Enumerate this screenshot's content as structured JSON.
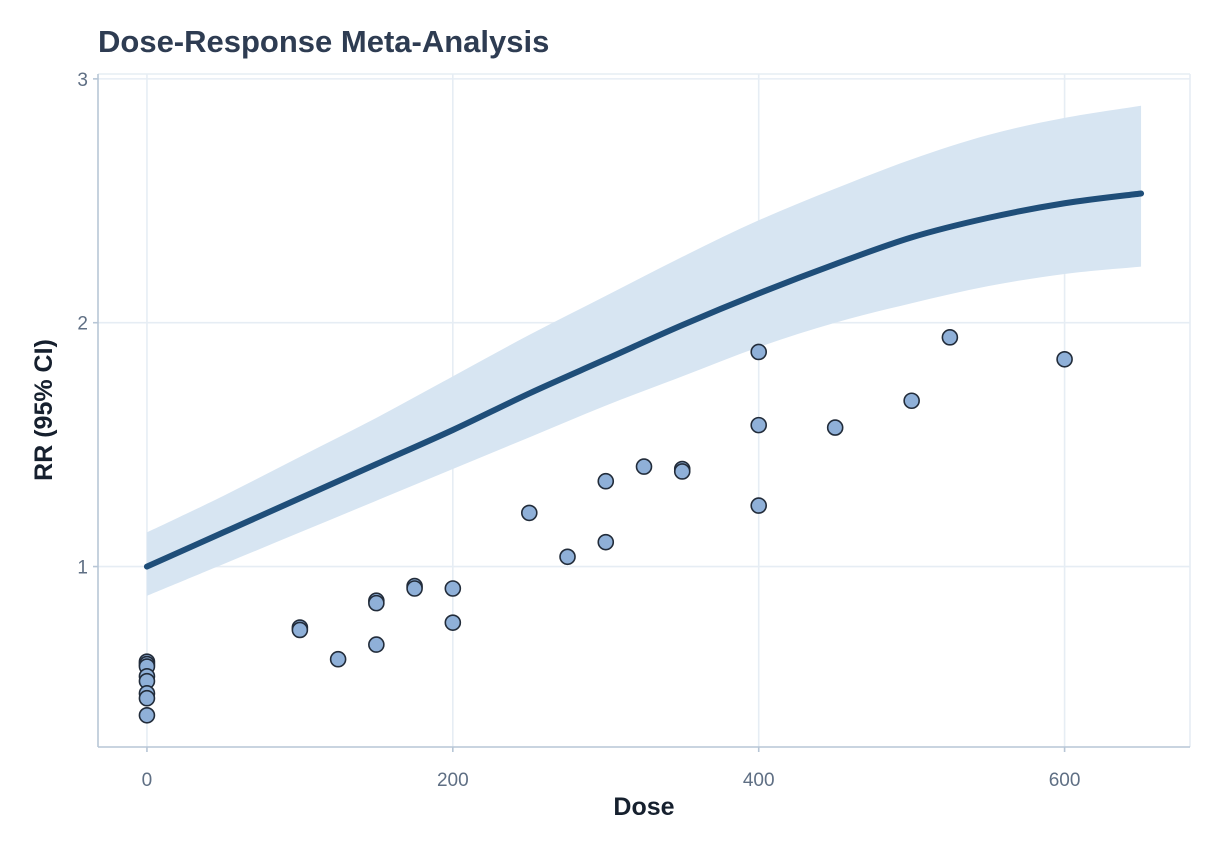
{
  "chart_data": {
    "type": "scatter",
    "title": "Dose-Response Meta-Analysis",
    "xlabel": "Dose",
    "ylabel": "RR (95% CI)",
    "xlim": [
      -32,
      682
    ],
    "ylim": [
      0.26,
      3.02
    ],
    "x_ticks": [
      0,
      200,
      400,
      600
    ],
    "y_ticks": [
      1,
      2,
      3
    ],
    "grid": true,
    "legend": "none",
    "colors": {
      "fit_line": "#1f4e79",
      "ci_band": "#d7e5f2",
      "points_fill": "#8fb0d8",
      "points_stroke": "#222c3a",
      "grid": "#e6edf4",
      "axis": "#b7c6d6"
    },
    "fit_curve": {
      "x": [
        0,
        50,
        100,
        150,
        200,
        250,
        300,
        350,
        400,
        450,
        500,
        550,
        600,
        650
      ],
      "y": [
        1.0,
        1.14,
        1.28,
        1.42,
        1.56,
        1.71,
        1.85,
        1.99,
        2.12,
        2.24,
        2.35,
        2.43,
        2.49,
        2.53
      ],
      "lower": [
        0.88,
        1.01,
        1.14,
        1.27,
        1.4,
        1.53,
        1.66,
        1.78,
        1.9,
        2.0,
        2.08,
        2.15,
        2.2,
        2.23
      ],
      "upper": [
        1.14,
        1.29,
        1.45,
        1.61,
        1.78,
        1.95,
        2.11,
        2.27,
        2.42,
        2.55,
        2.67,
        2.77,
        2.84,
        2.89
      ]
    },
    "points": [
      {
        "x": 0,
        "y": 0.61
      },
      {
        "x": 0,
        "y": 0.6
      },
      {
        "x": 0,
        "y": 0.59
      },
      {
        "x": 0,
        "y": 0.55
      },
      {
        "x": 0,
        "y": 0.53
      },
      {
        "x": 0,
        "y": 0.48
      },
      {
        "x": 0,
        "y": 0.46
      },
      {
        "x": 0,
        "y": 0.39
      },
      {
        "x": 100,
        "y": 0.75
      },
      {
        "x": 100,
        "y": 0.74
      },
      {
        "x": 125,
        "y": 0.62
      },
      {
        "x": 150,
        "y": 0.86
      },
      {
        "x": 150,
        "y": 0.85
      },
      {
        "x": 150,
        "y": 0.68
      },
      {
        "x": 175,
        "y": 0.92
      },
      {
        "x": 175,
        "y": 0.91
      },
      {
        "x": 200,
        "y": 0.91
      },
      {
        "x": 200,
        "y": 0.77
      },
      {
        "x": 250,
        "y": 1.22
      },
      {
        "x": 275,
        "y": 1.04
      },
      {
        "x": 300,
        "y": 1.35
      },
      {
        "x": 300,
        "y": 1.1
      },
      {
        "x": 325,
        "y": 1.41
      },
      {
        "x": 350,
        "y": 1.4
      },
      {
        "x": 350,
        "y": 1.39
      },
      {
        "x": 400,
        "y": 1.88
      },
      {
        "x": 400,
        "y": 1.58
      },
      {
        "x": 400,
        "y": 1.25
      },
      {
        "x": 450,
        "y": 1.57
      },
      {
        "x": 500,
        "y": 1.68
      },
      {
        "x": 525,
        "y": 1.94
      },
      {
        "x": 600,
        "y": 1.85
      }
    ]
  }
}
